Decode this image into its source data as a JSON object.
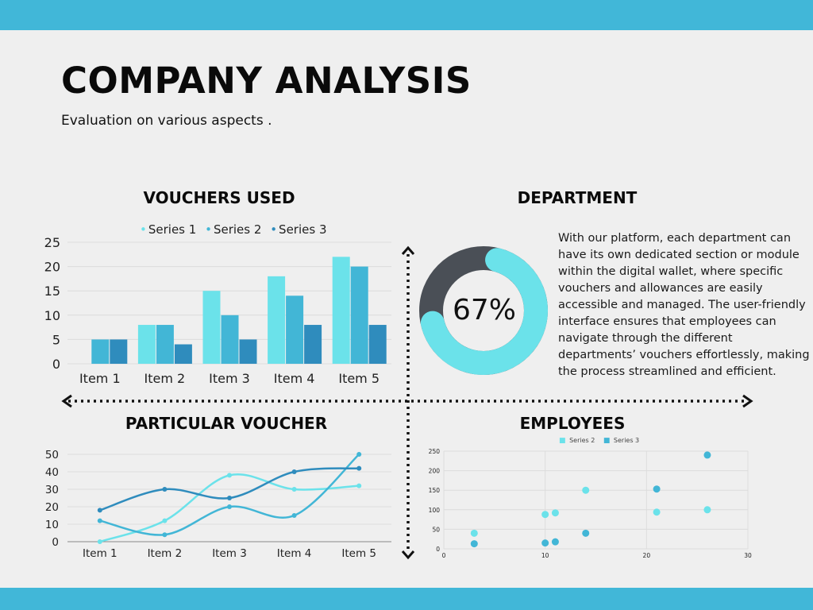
{
  "header": {
    "title": "COMPANY ANALYSIS",
    "subtitle": "Evaluation on various aspects ."
  },
  "colors": {
    "band": "#41b7d8",
    "series1": "#6be2ea",
    "series2": "#42b6d6",
    "series3": "#2f8cbd",
    "donut_dark": "#4a4f56",
    "background": "#efefef"
  },
  "sections": {
    "vouchers_used": "VOUCHERS USED",
    "department": "DEPARTMENT",
    "particular_voucher": "PARTICULAR VOUCHER",
    "employees": "EMPLOYEES"
  },
  "department": {
    "percent_label": "67%",
    "description": "With our platform, each department can have its own dedicated section or module within the digital wallet, where specific vouchers and allowances are easily accessible and managed. The user-friendly interface ensures that employees can navigate through the different departments’ vouchers effortlessly, making the process streamlined and efficient."
  },
  "chart_data": [
    {
      "type": "bar",
      "title": "VOUCHERS USED",
      "categories": [
        "Item 1",
        "Item 2",
        "Item 3",
        "Item 4",
        "Item 5"
      ],
      "series": [
        {
          "name": "Series 1",
          "values": [
            0,
            8,
            15,
            18,
            22
          ]
        },
        {
          "name": "Series 2",
          "values": [
            5,
            8,
            10,
            14,
            20
          ]
        },
        {
          "name": "Series 3",
          "values": [
            5,
            4,
            5,
            8,
            8
          ]
        }
      ],
      "yticks": [
        "0",
        "5",
        "10",
        "15",
        "20",
        "25"
      ],
      "ylim": [
        0,
        25
      ],
      "legend_position": "top",
      "grid": true
    },
    {
      "type": "pie",
      "title": "DEPARTMENT",
      "values": [
        67,
        33
      ],
      "label": "67%"
    },
    {
      "type": "line",
      "title": "PARTICULAR VOUCHER",
      "categories": [
        "Item 1",
        "Item 2",
        "Item 3",
        "Item 4",
        "Item 5"
      ],
      "series": [
        {
          "values": [
            0,
            12,
            38,
            30,
            32
          ]
        },
        {
          "values": [
            12,
            4,
            20,
            15,
            50
          ]
        },
        {
          "values": [
            18,
            30,
            25,
            40,
            42
          ]
        }
      ],
      "yticks": [
        "0",
        "10",
        "20",
        "30",
        "40",
        "50"
      ],
      "ylim": [
        0,
        50
      ],
      "grid": true
    },
    {
      "type": "scatter",
      "title": "EMPLOYEES",
      "series": [
        {
          "name": "Series 2",
          "points": [
            [
              3,
              40
            ],
            [
              10,
              88
            ],
            [
              11,
              92
            ],
            [
              14,
              150
            ],
            [
              21,
              94
            ],
            [
              26,
              100
            ]
          ]
        },
        {
          "name": "Series 3",
          "points": [
            [
              3,
              13
            ],
            [
              10,
              15
            ],
            [
              11,
              18
            ],
            [
              14,
              40
            ],
            [
              21,
              153
            ],
            [
              26,
              240
            ]
          ]
        }
      ],
      "xticks": [
        "0",
        "10",
        "20",
        "30"
      ],
      "yticks": [
        "0",
        "50",
        "100",
        "150",
        "200",
        "250"
      ],
      "xlim": [
        0,
        30
      ],
      "ylim": [
        0,
        250
      ],
      "legend_position": "top",
      "grid": true
    }
  ]
}
